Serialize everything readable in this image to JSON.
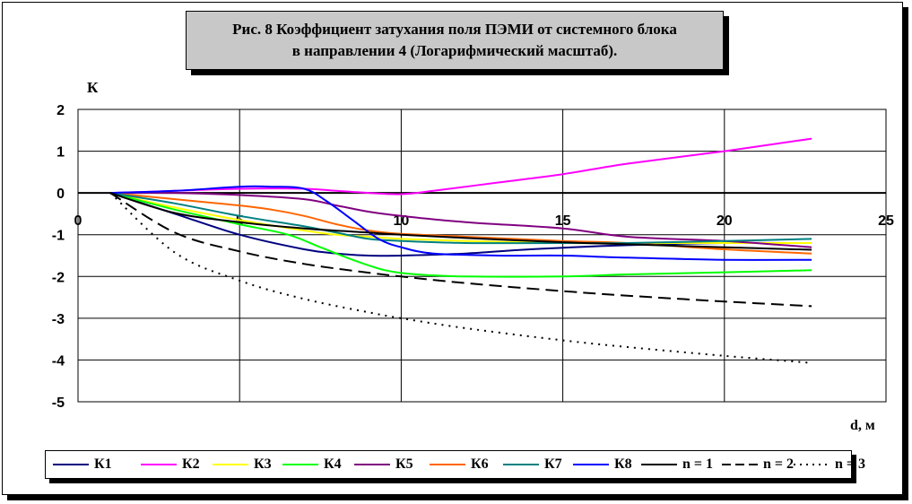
{
  "title_line1": "Рис. 8 Коэффициент затухания поля ПЭМИ от системного блока",
  "title_line2": "в направлении 4 (Логарифмический масштаб).",
  "chart_data": {
    "type": "line",
    "title": "Рис. 8 Коэффициент затухания поля ПЭМИ от системного блока в направлении 4 (Логарифмический масштаб).",
    "ylabel": "К",
    "xlabel": "d, м",
    "xlim": [
      0,
      25
    ],
    "ylim": [
      -5,
      2
    ],
    "x_ticks": [
      "0",
      "5",
      "10",
      "15",
      "20",
      "25"
    ],
    "y_ticks": [
      "2",
      "1",
      "0",
      "-1",
      "-2",
      "-3",
      "-4",
      "-5"
    ],
    "grid": true,
    "legend_position": "bottom",
    "series": [
      {
        "name": "К1",
        "color": "#000080",
        "dash": "solid",
        "x": [
          1,
          3,
          5,
          7,
          8,
          9,
          10,
          12,
          14,
          17,
          20,
          22.7
        ],
        "y": [
          0,
          -0.5,
          -1.0,
          -1.35,
          -1.45,
          -1.5,
          -1.5,
          -1.45,
          -1.35,
          -1.25,
          -1.2,
          -1.2
        ]
      },
      {
        "name": "К2",
        "color": "#ff00ff",
        "dash": "solid",
        "x": [
          1,
          3,
          5,
          7,
          8,
          9,
          10,
          11,
          13,
          15,
          17,
          20,
          22.7
        ],
        "y": [
          0,
          0.05,
          0.1,
          0.1,
          0.05,
          0.0,
          -0.03,
          0.05,
          0.25,
          0.45,
          0.7,
          1.0,
          1.3
        ]
      },
      {
        "name": "К3",
        "color": "#ffff00",
        "dash": "solid",
        "x": [
          1,
          3,
          5,
          7,
          8,
          9,
          10,
          12,
          15,
          17,
          20,
          22.7
        ],
        "y": [
          0,
          -0.35,
          -0.65,
          -0.9,
          -1.0,
          -1.05,
          -1.1,
          -1.15,
          -1.2,
          -1.2,
          -1.2,
          -1.2
        ]
      },
      {
        "name": "К4",
        "color": "#00ff00",
        "dash": "solid",
        "x": [
          1,
          3,
          5,
          6.5,
          7.5,
          8.5,
          9.5,
          10.5,
          12,
          15,
          17,
          20,
          22.7
        ],
        "y": [
          0,
          -0.4,
          -0.75,
          -1.0,
          -1.3,
          -1.6,
          -1.85,
          -1.95,
          -2.0,
          -2.0,
          -1.95,
          -1.9,
          -1.85
        ]
      },
      {
        "name": "К5",
        "color": "#800080",
        "dash": "solid",
        "x": [
          1,
          3,
          5,
          7,
          8,
          9,
          10,
          12,
          15,
          17,
          20,
          22.7
        ],
        "y": [
          0,
          0,
          -0.05,
          -0.15,
          -0.3,
          -0.45,
          -0.55,
          -0.7,
          -0.85,
          -1.05,
          -1.15,
          -1.3
        ]
      },
      {
        "name": "К6",
        "color": "#ff6600",
        "dash": "solid",
        "x": [
          1,
          3,
          5,
          6,
          7,
          8,
          9,
          10,
          12,
          15,
          17,
          20,
          22.7
        ],
        "y": [
          0,
          -0.15,
          -0.3,
          -0.4,
          -0.55,
          -0.75,
          -0.9,
          -0.98,
          -1.05,
          -1.15,
          -1.2,
          -1.35,
          -1.45
        ]
      },
      {
        "name": "К7",
        "color": "#008080",
        "dash": "solid",
        "x": [
          1,
          3,
          5,
          7,
          8,
          9,
          10,
          12,
          15,
          17,
          20,
          22.7
        ],
        "y": [
          0,
          -0.25,
          -0.55,
          -0.8,
          -0.95,
          -1.1,
          -1.15,
          -1.2,
          -1.2,
          -1.2,
          -1.15,
          -1.1
        ]
      },
      {
        "name": "К8",
        "color": "#0000ff",
        "dash": "solid",
        "x": [
          1,
          3,
          5,
          6,
          7,
          7.7,
          8.5,
          9.3,
          10,
          11,
          13,
          15,
          17,
          20,
          22.7
        ],
        "y": [
          0,
          0.05,
          0.15,
          0.15,
          0.1,
          -0.2,
          -0.65,
          -1.1,
          -1.3,
          -1.45,
          -1.5,
          -1.5,
          -1.55,
          -1.6,
          -1.6
        ]
      },
      {
        "name": "n = 1",
        "color": "#000000",
        "dash": "solid",
        "x": [
          1,
          3,
          5,
          7,
          9,
          10,
          12,
          15,
          17,
          20,
          22.7
        ],
        "y": [
          0,
          -0.48,
          -0.7,
          -0.85,
          -0.95,
          -1.0,
          -1.08,
          -1.18,
          -1.23,
          -1.3,
          -1.36
        ]
      },
      {
        "name": "n = 2",
        "color": "#000000",
        "dash": "long",
        "x": [
          1,
          3,
          5,
          7,
          9,
          10,
          12,
          15,
          17,
          20,
          22.7
        ],
        "y": [
          0,
          -0.95,
          -1.4,
          -1.7,
          -1.91,
          -2.0,
          -2.16,
          -2.35,
          -2.46,
          -2.6,
          -2.71
        ]
      },
      {
        "name": "n = 3",
        "color": "#000000",
        "dash": "dot",
        "x": [
          1,
          3,
          5,
          7,
          9,
          10,
          12,
          15,
          17,
          20,
          22.7
        ],
        "y": [
          0,
          -1.43,
          -2.1,
          -2.54,
          -2.86,
          -3.0,
          -3.24,
          -3.53,
          -3.69,
          -3.9,
          -4.07
        ]
      }
    ]
  }
}
